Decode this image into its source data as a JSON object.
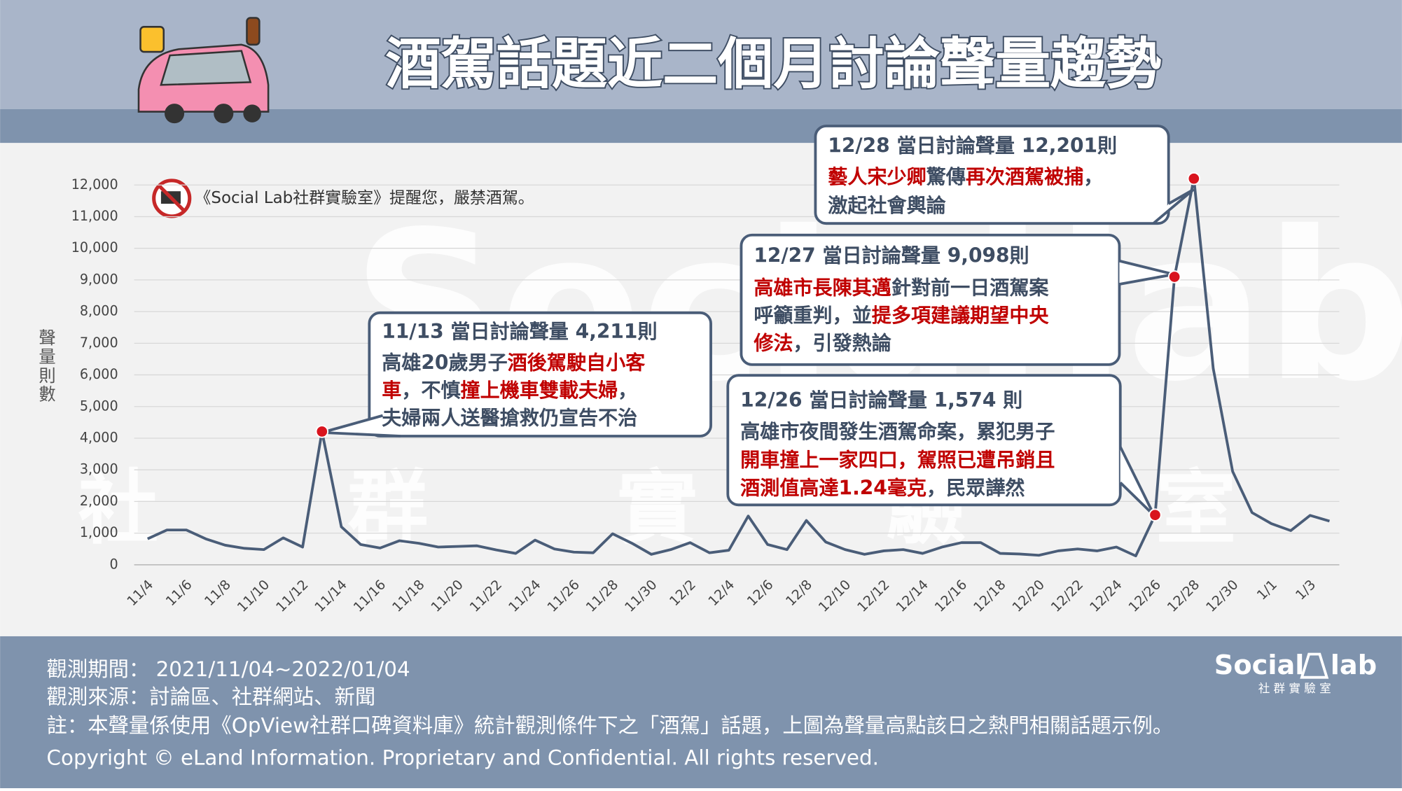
{
  "header": {
    "title": "酒駕話題近二個月討論聲量趨勢"
  },
  "notice": "《Social Lab社群實驗室》提醒您，嚴禁酒駕。",
  "chart_data": {
    "type": "line",
    "y_label": "聲量則數",
    "color": "#4a5d78",
    "marker_color": "#d9141e",
    "categories": [
      "11/4",
      null,
      "11/6",
      null,
      "11/8",
      null,
      "11/10",
      null,
      "11/12",
      null,
      "11/14",
      null,
      "11/16",
      null,
      "11/18",
      null,
      "11/20",
      null,
      "11/22",
      null,
      "11/24",
      null,
      "11/26",
      null,
      "11/28",
      null,
      "11/30",
      null,
      "12/2",
      null,
      "12/4",
      null,
      "12/6",
      null,
      "12/8",
      null,
      "12/10",
      null,
      "12/12",
      null,
      "12/14",
      null,
      "12/16",
      null,
      "12/18",
      null,
      "12/20",
      null,
      "12/22",
      null,
      "12/24",
      null,
      "12/26",
      null,
      "12/28",
      null,
      "12/30",
      null,
      "1/1",
      null,
      "1/3",
      null
    ],
    "values": [
      820,
      1100,
      1100,
      820,
      620,
      520,
      480,
      850,
      560,
      4211,
      1200,
      640,
      530,
      760,
      680,
      560,
      580,
      600,
      470,
      360,
      780,
      500,
      400,
      380,
      980,
      680,
      330,
      480,
      700,
      380,
      460,
      1540,
      640,
      480,
      1400,
      720,
      480,
      330,
      440,
      480,
      360,
      560,
      700,
      700,
      360,
      340,
      300,
      440,
      500,
      440,
      560,
      280,
      1574,
      9098,
      12201,
      6200,
      2950,
      1650,
      1300,
      1080,
      1560,
      1380
    ],
    "ylim": [
      0,
      12000
    ],
    "yticks": [
      0,
      {
        "value": 1000,
        "label": "1,000"
      },
      {
        "value": 2000,
        "label": "2,000"
      },
      {
        "value": 3000,
        "label": "3,000"
      },
      {
        "value": 4000,
        "label": "4,000"
      },
      {
        "value": 5000,
        "label": "5,000"
      },
      {
        "value": 6000,
        "label": "6,000"
      },
      {
        "value": 7000,
        "label": "7,000"
      },
      {
        "value": 8000,
        "label": "8,000"
      },
      {
        "value": 9000,
        "label": "9,000"
      },
      {
        "value": 10000,
        "label": "10,000"
      },
      {
        "value": 11000,
        "label": "11,000"
      },
      {
        "value": 12000,
        "label": "12,000"
      }
    ],
    "grid": true,
    "annotations": [
      {
        "title": "11/13 當日討論聲量 4,211則",
        "lines": [
          [
            {
              "text": "高雄20歲男子",
              "color": "#3e4d63"
            },
            {
              "text": "酒後駕駛自小客",
              "color": "#c00000"
            }
          ],
          [
            {
              "text": "車",
              "color": "#c00000"
            },
            {
              "text": "，不慎",
              "color": "#3e4d63"
            },
            {
              "text": "撞上機車雙載夫婦",
              "color": "#c00000"
            },
            {
              "text": "，",
              "color": "#3e4d63"
            }
          ],
          [
            {
              "text": "夫婦兩人送醫搶救仍宣告不治",
              "color": "#3e4d63"
            }
          ]
        ]
      },
      {
        "title": "12/27 當日討論聲量 9,098則",
        "lines": [
          [
            {
              "text": "高雄市長陳其邁",
              "color": "#c00000"
            },
            {
              "text": "針對前一日酒駕案",
              "color": "#3e4d63"
            }
          ],
          [
            {
              "text": "呼籲重判，並",
              "color": "#3e4d63"
            },
            {
              "text": "提多項建議期望中央",
              "color": "#c00000"
            }
          ],
          [
            {
              "text": "修法",
              "color": "#c00000"
            },
            {
              "text": "，引發熱論",
              "color": "#3e4d63"
            }
          ]
        ]
      },
      {
        "title": "12/28 當日討論聲量 12,201則",
        "lines": [
          [
            {
              "text": "藝人宋少卿",
              "color": "#c00000"
            },
            {
              "text": "驚傳",
              "color": "#3e4d63"
            },
            {
              "text": "再次酒駕被捕",
              "color": "#c00000"
            },
            {
              "text": "，",
              "color": "#3e4d63"
            }
          ],
          [
            {
              "text": "激起社會輿論",
              "color": "#3e4d63"
            }
          ]
        ]
      },
      {
        "title": "12/26 當日討論聲量 1,574 則",
        "lines": [
          [
            {
              "text": "高雄市夜間發生酒駕命案，累犯男子",
              "color": "#3e4d63"
            }
          ],
          [
            {
              "text": "開車撞上一家四口，駕照已遭吊銷且",
              "color": "#c00000"
            }
          ],
          [
            {
              "text": "酒測值高達1.24毫克",
              "color": "#c00000"
            },
            {
              "text": "，民眾譁然",
              "color": "#3e4d63"
            }
          ]
        ]
      }
    ]
  },
  "footer": {
    "lines": [
      "觀測期間： 2021/11/04~2022/01/04",
      "觀測來源：討論區、社群網站、新聞",
      "註：本聲量係使用《OpView社群口碑資料庫》統計觀測條件下之「酒駕」話題，上圖為聲量高點該日之熱門相關話題示例。",
      "Copyright © eLand Information. Proprietary and Confidential. All rights reserved."
    ]
  },
  "logo": {
    "left": "Social",
    "right": "lab",
    "subtitle": "社 群 實 驗 室"
  }
}
